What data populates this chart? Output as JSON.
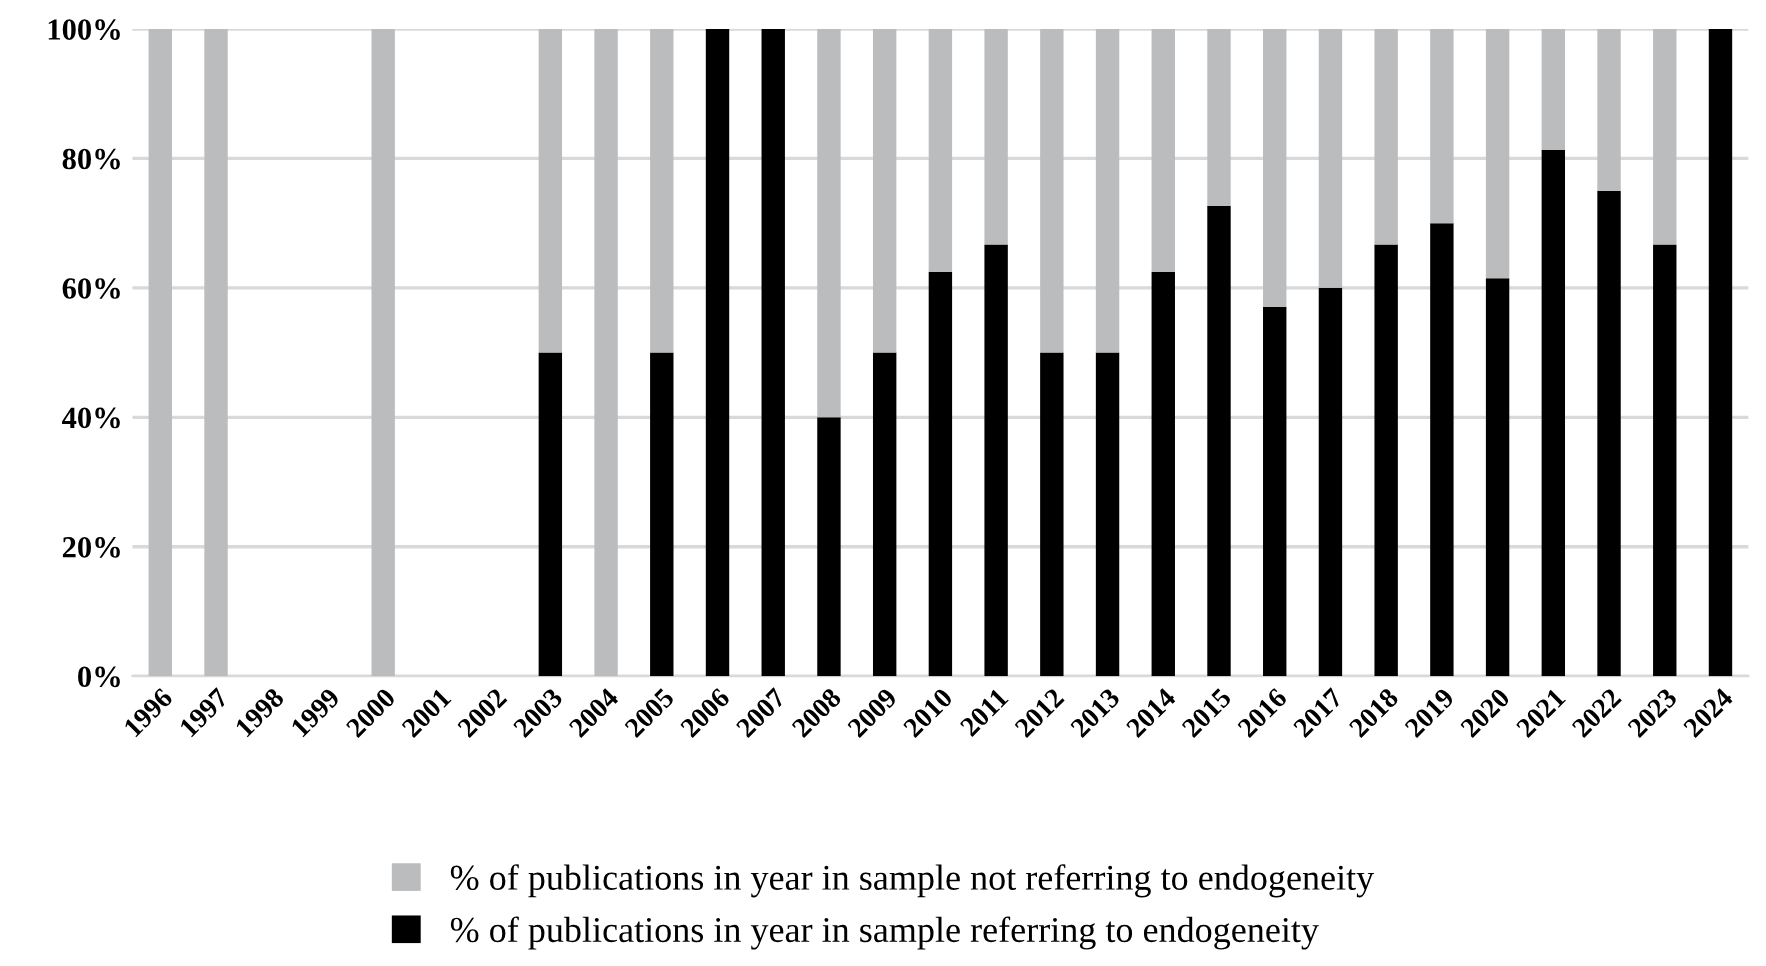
{
  "chart_data": {
    "type": "bar",
    "stacked": true,
    "categories": [
      "1996",
      "1997",
      "1998",
      "1999",
      "2000",
      "2001",
      "2002",
      "2003",
      "2004",
      "2005",
      "2006",
      "2007",
      "2008",
      "2009",
      "2010",
      "2011",
      "2012",
      "2013",
      "2014",
      "2015",
      "2016",
      "2017",
      "2018",
      "2019",
      "2020",
      "2021",
      "2022",
      "2023",
      "2024"
    ],
    "series": [
      {
        "name": "% of publications in year in sample referring to endogeneity",
        "color": "#000000",
        "values": [
          0,
          0,
          null,
          null,
          0,
          null,
          null,
          50,
          0,
          50,
          100,
          100,
          40,
          50,
          62.5,
          66.7,
          50,
          50,
          62.5,
          72.7,
          57.1,
          60,
          66.7,
          70,
          61.5,
          81.3,
          75,
          66.7,
          100
        ]
      },
      {
        "name": "% of publications in year in sample not referring to endogeneity",
        "color": "#bbbcbe",
        "values": [
          100,
          100,
          null,
          null,
          100,
          null,
          null,
          50,
          100,
          50,
          0,
          0,
          60,
          50,
          37.5,
          33.3,
          50,
          50,
          37.5,
          27.3,
          42.9,
          40,
          33.3,
          30,
          38.5,
          18.7,
          25,
          33.3,
          0
        ]
      }
    ],
    "ylim": [
      0,
      100
    ],
    "yticks": [
      {
        "value": 0,
        "label": "0%"
      },
      {
        "value": 20,
        "label": "20%"
      },
      {
        "value": 40,
        "label": "40%"
      },
      {
        "value": 60,
        "label": "60%"
      },
      {
        "value": 80,
        "label": "80%"
      },
      {
        "value": 100,
        "label": "100%"
      }
    ],
    "grid": "y",
    "legend": "bottom"
  }
}
